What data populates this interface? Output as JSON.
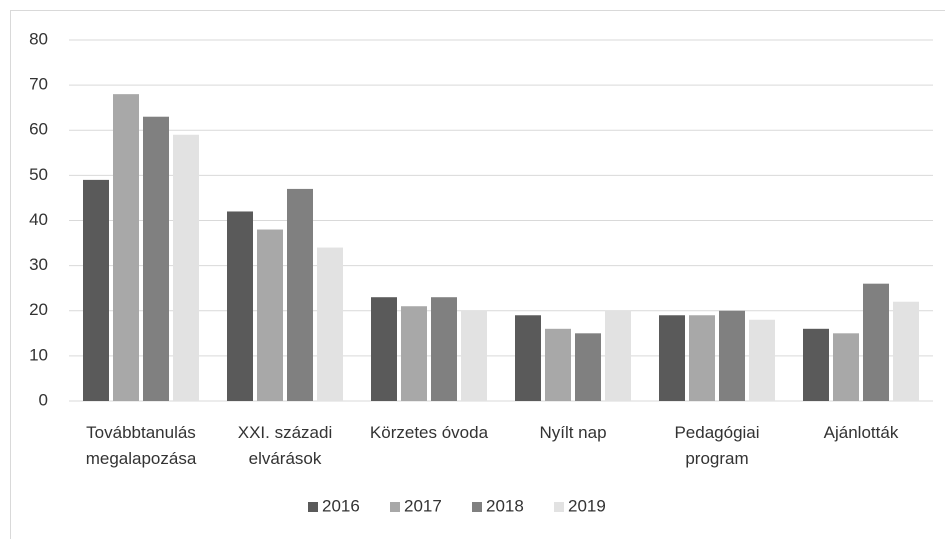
{
  "chart_data": {
    "type": "bar",
    "categories": [
      "Továbbtanulás\nmegalapozása",
      "XXI. századi\nelvárások",
      "Körzetes óvoda",
      "Nyílt nap",
      "Pedagógiai\nprogram",
      "Ajánlották"
    ],
    "series": [
      {
        "name": "2016",
        "color": "#5a5a5a",
        "values": [
          49,
          42,
          23,
          19,
          19,
          16
        ]
      },
      {
        "name": "2017",
        "color": "#a8a8a8",
        "values": [
          68,
          38,
          21,
          16,
          19,
          15
        ]
      },
      {
        "name": "2018",
        "color": "#808080",
        "values": [
          63,
          47,
          23,
          15,
          20,
          26
        ]
      },
      {
        "name": "2019",
        "color": "#e2e2e2",
        "values": [
          59,
          34,
          20,
          20,
          18,
          22
        ]
      }
    ],
    "ylim": [
      0,
      80
    ],
    "yticks": [
      0,
      10,
      20,
      30,
      40,
      50,
      60,
      70,
      80
    ],
    "grid": true,
    "legend": "bottom"
  }
}
